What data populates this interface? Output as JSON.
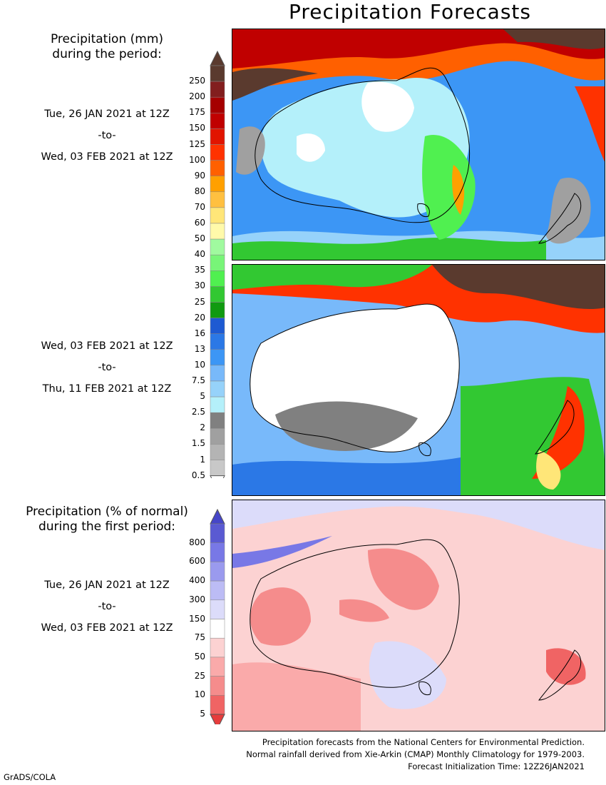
{
  "title": "Precipitation Forecasts",
  "legend1": {
    "heading_line1": "Precipitation (mm)",
    "heading_line2": "during the period:",
    "levels": [
      "0.5",
      "1",
      "1.5",
      "2",
      "2.5",
      "5",
      "7.5",
      "10",
      "13",
      "16",
      "20",
      "25",
      "30",
      "35",
      "40",
      "50",
      "60",
      "70",
      "80",
      "90",
      "100",
      "125",
      "150",
      "175",
      "200",
      "250"
    ],
    "colors": [
      "#c8c8c8",
      "#b4b4b4",
      "#a0a0a0",
      "#808080",
      "#b4f0fa",
      "#96d2fa",
      "#78b9fa",
      "#3c96f5",
      "#2b78e6",
      "#1e5ad2",
      "#109a10",
      "#32c832",
      "#50f050",
      "#78f578",
      "#a0fa9f",
      "#fffaaa",
      "#ffe678",
      "#ffc040",
      "#ffa000",
      "#ff6000",
      "#ff3200",
      "#e11400",
      "#c00000",
      "#a50000",
      "#821e1e",
      "#5a3a2e"
    ],
    "top_color": "#5a3a2e",
    "bottom_color": "#ffffff"
  },
  "period1": {
    "start": "Tue, 26 JAN 2021 at 12Z",
    "to": "-to-",
    "end": "Wed, 03 FEB 2021 at 12Z"
  },
  "period2": {
    "start": "Wed, 03 FEB 2021 at 12Z",
    "to": "-to-",
    "end": "Thu, 11 FEB 2021 at 12Z"
  },
  "legend2": {
    "heading_line1": "Precipitation (% of normal)",
    "heading_line2": "during the first period:",
    "levels": [
      "5",
      "10",
      "25",
      "50",
      "75",
      "150",
      "300",
      "400",
      "600",
      "800"
    ],
    "colors": [
      "#f06464",
      "#f58c8c",
      "#faaaaa",
      "#fcd2d2",
      "#ffffff",
      "#dcdcfa",
      "#bcbcf5",
      "#9a9aee",
      "#7878e6",
      "#5a5ad2"
    ],
    "top_color": "#4646c8",
    "bottom_color": "#e63c3c"
  },
  "period3": {
    "start": "Tue, 26 JAN 2021 at 12Z",
    "to": "-to-",
    "end": "Wed, 03 FEB 2021 at 12Z"
  },
  "footer": {
    "line1": "Precipitation forecasts from the National Centers for Environmental Prediction.",
    "line2": "Normal rainfall derived from Xie-Arkin (CMAP) Monthly Climatology for 1979-2003.",
    "line3": "Forecast Initialization Time: 12Z26JAN2021"
  },
  "credit": "GrADS/COLA"
}
